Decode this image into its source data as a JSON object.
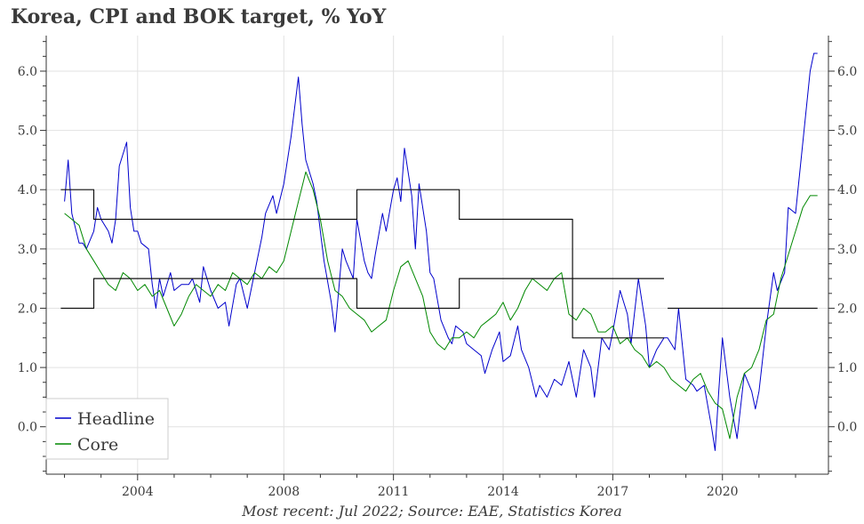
{
  "title": "Korea, CPI and BOK target, % YoY",
  "source": "Most recent: Jul 2022; Source: EAE, Statistics Korea",
  "chart_data": {
    "type": "line",
    "title": "Korea, CPI and BOK target, % YoY",
    "xlabel": "",
    "ylabel": "",
    "xlim": [
      2001.5,
      2022.9
    ],
    "ylim": [
      -0.8,
      6.6
    ],
    "x_ticks": [
      2004,
      2008,
      2011,
      2014,
      2017,
      2020
    ],
    "x_tick_labels": [
      "2004",
      "2008",
      "2011",
      "2014",
      "2017",
      "2020"
    ],
    "y_ticks": [
      0,
      1,
      2,
      3,
      4,
      5,
      6
    ],
    "y_tick_labels": [
      "0.0",
      "1.0",
      "2.0",
      "3.0",
      "4.0",
      "5.0",
      "6.0"
    ],
    "grid": true,
    "legend_position": "bottom-left",
    "series": [
      {
        "name": "Headline",
        "color": "#0000cc",
        "x": [
          2002.0,
          2002.1,
          2002.2,
          2002.4,
          2002.5,
          2002.6,
          2002.8,
          2002.9,
          2003.0,
          2003.2,
          2003.3,
          2003.4,
          2003.5,
          2003.7,
          2003.8,
          2003.9,
          2004.0,
          2004.1,
          2004.3,
          2004.4,
          2004.5,
          2004.6,
          2004.7,
          2004.9,
          2005.0,
          2005.2,
          2005.4,
          2005.5,
          2005.7,
          2005.8,
          2006.0,
          2006.2,
          2006.4,
          2006.5,
          2006.7,
          2006.8,
          2007.0,
          2007.2,
          2007.4,
          2007.5,
          2007.7,
          2007.8,
          2008.0,
          2008.2,
          2008.4,
          2008.5,
          2008.6,
          2008.8,
          2008.9,
          2009.0,
          2009.1,
          2009.3,
          2009.4,
          2009.5,
          2009.6,
          2009.7,
          2009.9,
          2010.0,
          2010.2,
          2010.3,
          2010.4,
          2010.5,
          2010.7,
          2010.8,
          2011.0,
          2011.1,
          2011.2,
          2011.3,
          2011.5,
          2011.6,
          2011.7,
          2011.9,
          2012.0,
          2012.1,
          2012.3,
          2012.5,
          2012.6,
          2012.7,
          2012.9,
          2013.0,
          2013.2,
          2013.4,
          2013.5,
          2013.7,
          2013.9,
          2014.0,
          2014.2,
          2014.4,
          2014.5,
          2014.7,
          2014.9,
          2015.0,
          2015.2,
          2015.4,
          2015.6,
          2015.8,
          2016.0,
          2016.2,
          2016.4,
          2016.5,
          2016.7,
          2016.9,
          2017.0,
          2017.2,
          2017.4,
          2017.5,
          2017.7,
          2017.9,
          2018.0,
          2018.2,
          2018.4,
          2018.5,
          2018.7,
          2018.8,
          2019.0,
          2019.2,
          2019.3,
          2019.5,
          2019.7,
          2019.8,
          2019.9,
          2020.0,
          2020.2,
          2020.4,
          2020.6,
          2020.8,
          2020.9,
          2021.0,
          2021.2,
          2021.4,
          2021.5,
          2021.7,
          2021.8,
          2022.0,
          2022.2,
          2022.4,
          2022.5,
          2022.6
        ],
        "values": [
          3.8,
          4.5,
          3.6,
          3.1,
          3.1,
          3.0,
          3.3,
          3.7,
          3.5,
          3.3,
          3.1,
          3.5,
          4.4,
          4.8,
          3.7,
          3.3,
          3.3,
          3.1,
          3.0,
          2.4,
          2.0,
          2.5,
          2.2,
          2.6,
          2.3,
          2.4,
          2.4,
          2.5,
          2.1,
          2.7,
          2.3,
          2.0,
          2.1,
          1.7,
          2.4,
          2.5,
          2.0,
          2.6,
          3.2,
          3.6,
          3.9,
          3.6,
          4.1,
          4.9,
          5.9,
          5.1,
          4.5,
          4.1,
          3.8,
          3.3,
          2.8,
          2.1,
          1.6,
          2.3,
          3.0,
          2.8,
          2.5,
          3.5,
          2.8,
          2.6,
          2.5,
          2.9,
          3.6,
          3.3,
          4.0,
          4.2,
          3.8,
          4.7,
          3.9,
          3.0,
          4.1,
          3.3,
          2.6,
          2.5,
          1.8,
          1.5,
          1.4,
          1.7,
          1.6,
          1.4,
          1.3,
          1.2,
          0.9,
          1.3,
          1.6,
          1.1,
          1.2,
          1.7,
          1.3,
          1.0,
          0.5,
          0.7,
          0.5,
          0.8,
          0.7,
          1.1,
          0.5,
          1.3,
          1.0,
          0.5,
          1.5,
          1.3,
          1.6,
          2.3,
          1.9,
          1.4,
          2.5,
          1.7,
          1.0,
          1.3,
          1.5,
          1.5,
          1.3,
          2.0,
          0.8,
          0.7,
          0.6,
          0.7,
          0.0,
          -0.4,
          0.6,
          1.5,
          0.5,
          -0.2,
          0.9,
          0.6,
          0.3,
          0.6,
          1.7,
          2.6,
          2.3,
          2.6,
          3.7,
          3.6,
          4.8,
          6.0,
          6.3,
          6.3
        ]
      },
      {
        "name": "Core",
        "color": "#008800",
        "x": [
          2002.0,
          2002.2,
          2002.4,
          2002.6,
          2002.8,
          2003.0,
          2003.2,
          2003.4,
          2003.6,
          2003.8,
          2004.0,
          2004.2,
          2004.4,
          2004.6,
          2004.8,
          2005.0,
          2005.2,
          2005.4,
          2005.6,
          2005.8,
          2006.0,
          2006.2,
          2006.4,
          2006.6,
          2006.8,
          2007.0,
          2007.2,
          2007.4,
          2007.6,
          2007.8,
          2008.0,
          2008.2,
          2008.4,
          2008.6,
          2008.8,
          2009.0,
          2009.2,
          2009.4,
          2009.6,
          2009.8,
          2010.0,
          2010.2,
          2010.4,
          2010.6,
          2010.8,
          2011.0,
          2011.2,
          2011.4,
          2011.6,
          2011.8,
          2012.0,
          2012.2,
          2012.4,
          2012.6,
          2012.8,
          2013.0,
          2013.2,
          2013.4,
          2013.6,
          2013.8,
          2014.0,
          2014.2,
          2014.4,
          2014.6,
          2014.8,
          2015.0,
          2015.2,
          2015.4,
          2015.6,
          2015.8,
          2016.0,
          2016.2,
          2016.4,
          2016.6,
          2016.8,
          2017.0,
          2017.2,
          2017.4,
          2017.6,
          2017.8,
          2018.0,
          2018.2,
          2018.4,
          2018.6,
          2018.8,
          2019.0,
          2019.2,
          2019.4,
          2019.6,
          2019.8,
          2020.0,
          2020.2,
          2020.4,
          2020.6,
          2020.8,
          2021.0,
          2021.2,
          2021.4,
          2021.6,
          2021.8,
          2022.0,
          2022.2,
          2022.4,
          2022.6
        ],
        "values": [
          3.6,
          3.5,
          3.4,
          3.0,
          2.8,
          2.6,
          2.4,
          2.3,
          2.6,
          2.5,
          2.3,
          2.4,
          2.2,
          2.3,
          2.0,
          1.7,
          1.9,
          2.2,
          2.4,
          2.3,
          2.2,
          2.4,
          2.3,
          2.6,
          2.5,
          2.4,
          2.6,
          2.5,
          2.7,
          2.6,
          2.8,
          3.3,
          3.8,
          4.3,
          4.0,
          3.5,
          2.8,
          2.3,
          2.2,
          2.0,
          1.9,
          1.8,
          1.6,
          1.7,
          1.8,
          2.3,
          2.7,
          2.8,
          2.5,
          2.2,
          1.6,
          1.4,
          1.3,
          1.5,
          1.5,
          1.6,
          1.5,
          1.7,
          1.8,
          1.9,
          2.1,
          1.8,
          2.0,
          2.3,
          2.5,
          2.4,
          2.3,
          2.5,
          2.6,
          1.9,
          1.8,
          2.0,
          1.9,
          1.6,
          1.6,
          1.7,
          1.4,
          1.5,
          1.3,
          1.2,
          1.0,
          1.1,
          1.0,
          0.8,
          0.7,
          0.6,
          0.8,
          0.9,
          0.6,
          0.4,
          0.3,
          -0.2,
          0.5,
          0.9,
          1.0,
          1.3,
          1.8,
          1.9,
          2.5,
          2.9,
          3.3,
          3.7,
          3.9,
          3.9
        ]
      },
      {
        "name": "",
        "color": "#111111",
        "x": [
          2001.9,
          2002.8,
          2002.8,
          2010.0,
          2010.0,
          2012.8,
          2012.8,
          2015.9,
          2015.9,
          2018.4
        ],
        "values": [
          4.0,
          4.0,
          3.5,
          3.5,
          4.0,
          4.0,
          3.5,
          3.5,
          2.5,
          2.5
        ]
      },
      {
        "name": "",
        "color": "#111111",
        "x": [
          2001.9,
          2002.8,
          2002.8,
          2010.0,
          2010.0,
          2012.8,
          2012.8,
          2015.9,
          2015.9,
          2018.4
        ],
        "values": [
          2.0,
          2.0,
          2.5,
          2.5,
          2.0,
          2.0,
          2.5,
          2.5,
          1.5,
          1.5
        ]
      },
      {
        "name": "",
        "color": "#111111",
        "x": [
          2018.5,
          2022.6
        ],
        "values": [
          2.0,
          2.0
        ]
      }
    ]
  }
}
